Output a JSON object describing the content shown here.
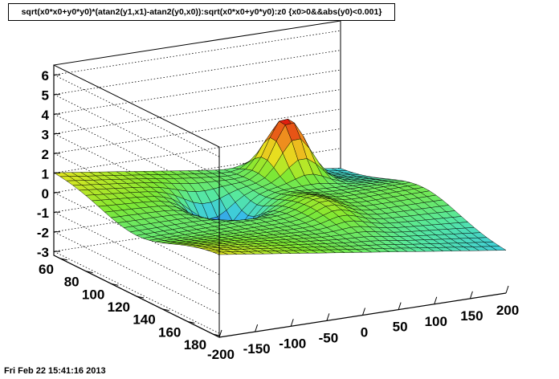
{
  "title": "sqrt(x0*x0+y0*y0)*(atan2(y1,x1)-atan2(y0,x0)):sqrt(x0*x0+y0*y0):z0 {x0>0&&abs(y0)<0.001}",
  "timestamp": "Fri Feb 22 15:41:16 2013",
  "chart_data": {
    "type": "surface",
    "title": "sqrt(x0*x0+y0*y0)*(atan2(y1,x1)-atan2(y0,x0)):sqrt(x0*x0+y0*y0):z0 {x0>0&&abs(y0)<0.001}",
    "x_ticks": [
      -200,
      -150,
      -100,
      -50,
      0,
      50,
      100,
      150,
      200
    ],
    "y_ticks": [
      60,
      80,
      100,
      120,
      140,
      160,
      180
    ],
    "z_ticks": [
      -3,
      -2,
      -1,
      0,
      1,
      2,
      3,
      4,
      5,
      6
    ],
    "xlim": [
      -200,
      200
    ],
    "ylim": [
      55,
      185
    ],
    "zlim": [
      -3.2,
      6.5
    ],
    "grid": true,
    "colormap": [
      "#3b1cd0",
      "#2f6fe6",
      "#39c6e8",
      "#56e8a0",
      "#7de833",
      "#e6e61f",
      "#f09a1f",
      "#e02010",
      "#c80000"
    ]
  }
}
